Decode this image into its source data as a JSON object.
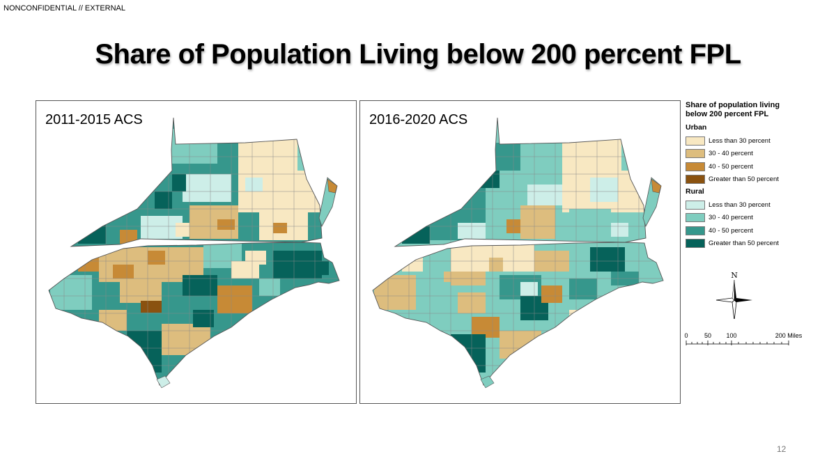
{
  "header": {
    "classification": "NONCONFIDENTIAL // EXTERNAL",
    "title": "Share of Population Living below 200 percent FPL"
  },
  "maps": [
    {
      "label": "2011-2015 ACS"
    },
    {
      "label": "2016-2020 ACS"
    }
  ],
  "legend": {
    "title_line1": "Share of population living",
    "title_line2": "below 200 percent FPL",
    "urban": {
      "heading": "Urban",
      "items": [
        {
          "label": "Less than 30 percent",
          "color": "#f8e8c2"
        },
        {
          "label": "30 - 40 percent",
          "color": "#ddbd7e"
        },
        {
          "label": "40 - 50 percent",
          "color": "#c78a36"
        },
        {
          "label": "Greater than 50 percent",
          "color": "#8a5210"
        }
      ]
    },
    "rural": {
      "heading": "Rural",
      "items": [
        {
          "label": "Less than 30 percent",
          "color": "#cdeee8"
        },
        {
          "label": "30 - 40 percent",
          "color": "#7fcdbf"
        },
        {
          "label": "40 - 50 percent",
          "color": "#36978c"
        },
        {
          "label": "Greater than 50 percent",
          "color": "#06625a"
        }
      ]
    }
  },
  "compass": {
    "label": "N"
  },
  "scale": {
    "ticks": [
      "0",
      "50",
      "100",
      "200 Miles"
    ]
  },
  "page_number": "12"
}
